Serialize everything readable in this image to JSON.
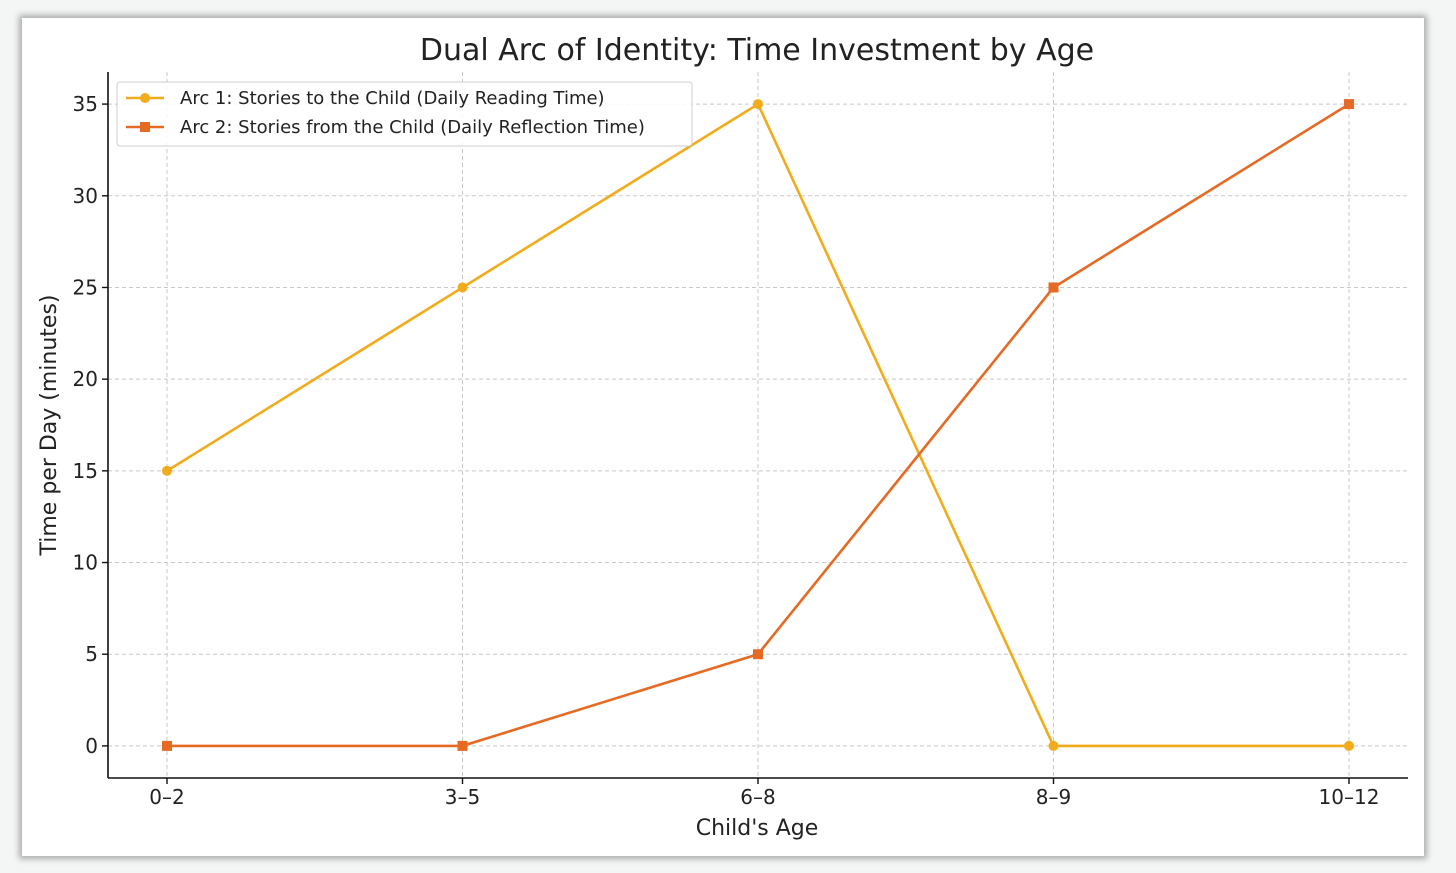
{
  "chart_data": {
    "type": "line",
    "title": "Dual Arc of Identity: Time Investment by Age",
    "xlabel": "Child's Age",
    "ylabel": "Time per Day (minutes)",
    "categories": [
      "0–2",
      "3–5",
      "6–8",
      "8–9",
      "10–12"
    ],
    "yticks": [
      0,
      5,
      10,
      15,
      20,
      25,
      30,
      35
    ],
    "ylim": [
      -1.75,
      36.75
    ],
    "grid": true,
    "legend_position": "upper-left",
    "series": [
      {
        "name": "Arc 1: Stories to the Child (Daily Reading Time)",
        "values": [
          15,
          25,
          35,
          0,
          0
        ],
        "color": "#f2ab1b",
        "marker": "circle"
      },
      {
        "name": "Arc 2: Stories from the Child (Daily Reflection Time)",
        "values": [
          0,
          0,
          5,
          25,
          35
        ],
        "color": "#e66a24",
        "marker": "square"
      }
    ]
  }
}
